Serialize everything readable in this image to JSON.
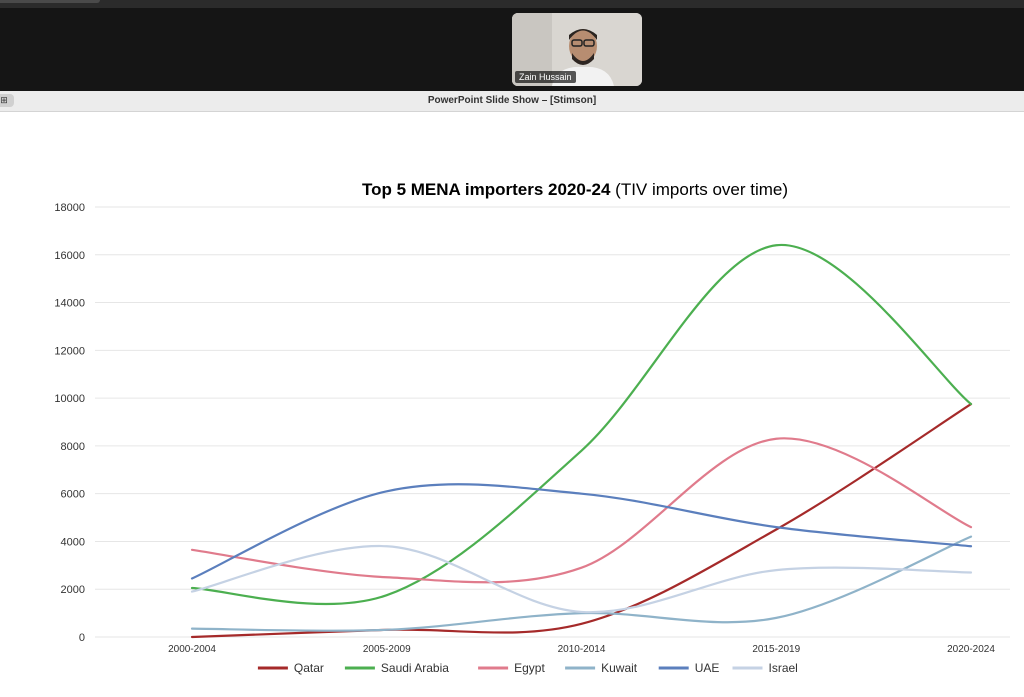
{
  "meeting": {
    "participant_name": "Zain Hussain"
  },
  "window": {
    "title": "PowerPoint Slide Show – [Stimson]",
    "button_glyph": "⊞"
  },
  "chart_data": {
    "type": "line",
    "title_bold": "Top 5 MENA importers 2020-24",
    "title_rest": " (TIV imports over time)",
    "categories": [
      "2000-2004",
      "2005-2009",
      "2010-2014",
      "2015-2019",
      "2020-2024"
    ],
    "ylim": [
      0,
      18000
    ],
    "yticks": [
      0,
      2000,
      4000,
      6000,
      8000,
      10000,
      12000,
      14000,
      16000,
      18000
    ],
    "grid": true,
    "legend_position": "bottom",
    "smooth": true,
    "series": [
      {
        "name": "Qatar",
        "color": "#a52a2a",
        "values": [
          0,
          300,
          550,
          4500,
          9750
        ]
      },
      {
        "name": "Saudi Arabia",
        "color": "#4caf50",
        "values": [
          2050,
          1750,
          7800,
          16400,
          9750
        ]
      },
      {
        "name": "Egypt",
        "color": "#e07b8c",
        "values": [
          3650,
          2500,
          2900,
          8300,
          4600
        ]
      },
      {
        "name": "Kuwait",
        "color": "#8fb3c9",
        "values": [
          350,
          300,
          1000,
          800,
          4200
        ]
      },
      {
        "name": "UAE",
        "color": "#5b7fbd",
        "values": [
          2450,
          6100,
          6000,
          4600,
          3800
        ]
      },
      {
        "name": "Israel",
        "color": "#c5d2e4",
        "values": [
          1900,
          3800,
          1050,
          2800,
          2700
        ]
      }
    ]
  }
}
